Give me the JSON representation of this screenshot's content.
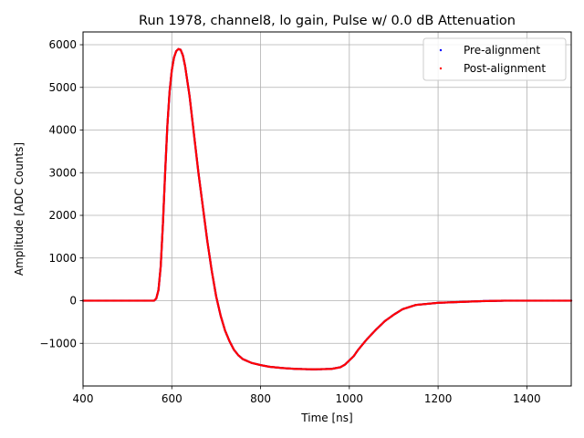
{
  "chart_data": {
    "type": "scatter",
    "title": "Run 1978, channel8, lo gain, Pulse w/ 0.0 dB Attenuation",
    "xlabel": "Time [ns]",
    "ylabel": "Amplitude [ADC Counts]",
    "xlim": [
      400,
      1500
    ],
    "ylim": [
      -2000,
      6300
    ],
    "xticks": [
      400,
      600,
      800,
      1000,
      1200,
      1400
    ],
    "yticks": [
      -1000,
      0,
      1000,
      2000,
      3000,
      4000,
      5000,
      6000
    ],
    "ytick_labels": [
      "−1000",
      "0",
      "1000",
      "2000",
      "3000",
      "4000",
      "5000",
      "6000"
    ],
    "grid": true,
    "legend": {
      "placement": "top-right"
    },
    "series": [
      {
        "name": "Pre-alignment",
        "color": "#0000ff",
        "x": [
          400,
          560,
          565,
          570,
          575,
          580,
          585,
          590,
          595,
          600,
          605,
          610,
          615,
          620,
          625,
          630,
          640,
          650,
          660,
          670,
          680,
          690,
          700,
          710,
          720,
          730,
          740,
          750,
          760,
          780,
          800,
          820,
          850,
          880,
          920,
          960,
          980,
          990,
          1000,
          1010,
          1020,
          1040,
          1060,
          1080,
          1100,
          1120,
          1150,
          1200,
          1250,
          1300,
          1350,
          1400,
          1450,
          1500
        ],
        "y": [
          0,
          0,
          50,
          250,
          800,
          1800,
          3000,
          4100,
          4900,
          5400,
          5700,
          5850,
          5900,
          5880,
          5750,
          5500,
          4800,
          3900,
          3000,
          2200,
          1400,
          700,
          100,
          -350,
          -700,
          -950,
          -1150,
          -1280,
          -1370,
          -1460,
          -1510,
          -1550,
          -1580,
          -1600,
          -1610,
          -1600,
          -1560,
          -1500,
          -1400,
          -1300,
          -1150,
          -900,
          -680,
          -480,
          -330,
          -200,
          -100,
          -50,
          -30,
          -10,
          0,
          0,
          0,
          0
        ]
      },
      {
        "name": "Post-alignment",
        "color": "#ff0000",
        "x": [
          400,
          560,
          565,
          570,
          575,
          580,
          585,
          590,
          595,
          600,
          605,
          610,
          615,
          620,
          625,
          630,
          640,
          650,
          660,
          670,
          680,
          690,
          700,
          710,
          720,
          730,
          740,
          750,
          760,
          780,
          800,
          820,
          850,
          880,
          920,
          960,
          980,
          990,
          1000,
          1010,
          1020,
          1040,
          1060,
          1080,
          1100,
          1120,
          1150,
          1200,
          1250,
          1300,
          1350,
          1400,
          1450,
          1500
        ],
        "y": [
          0,
          0,
          50,
          250,
          800,
          1800,
          3000,
          4100,
          4900,
          5400,
          5700,
          5850,
          5900,
          5880,
          5750,
          5500,
          4800,
          3900,
          3000,
          2200,
          1400,
          700,
          100,
          -350,
          -700,
          -950,
          -1150,
          -1280,
          -1370,
          -1460,
          -1510,
          -1550,
          -1580,
          -1600,
          -1610,
          -1600,
          -1560,
          -1500,
          -1400,
          -1300,
          -1150,
          -900,
          -680,
          -480,
          -330,
          -200,
          -100,
          -50,
          -30,
          -10,
          0,
          0,
          0,
          0
        ]
      }
    ]
  }
}
